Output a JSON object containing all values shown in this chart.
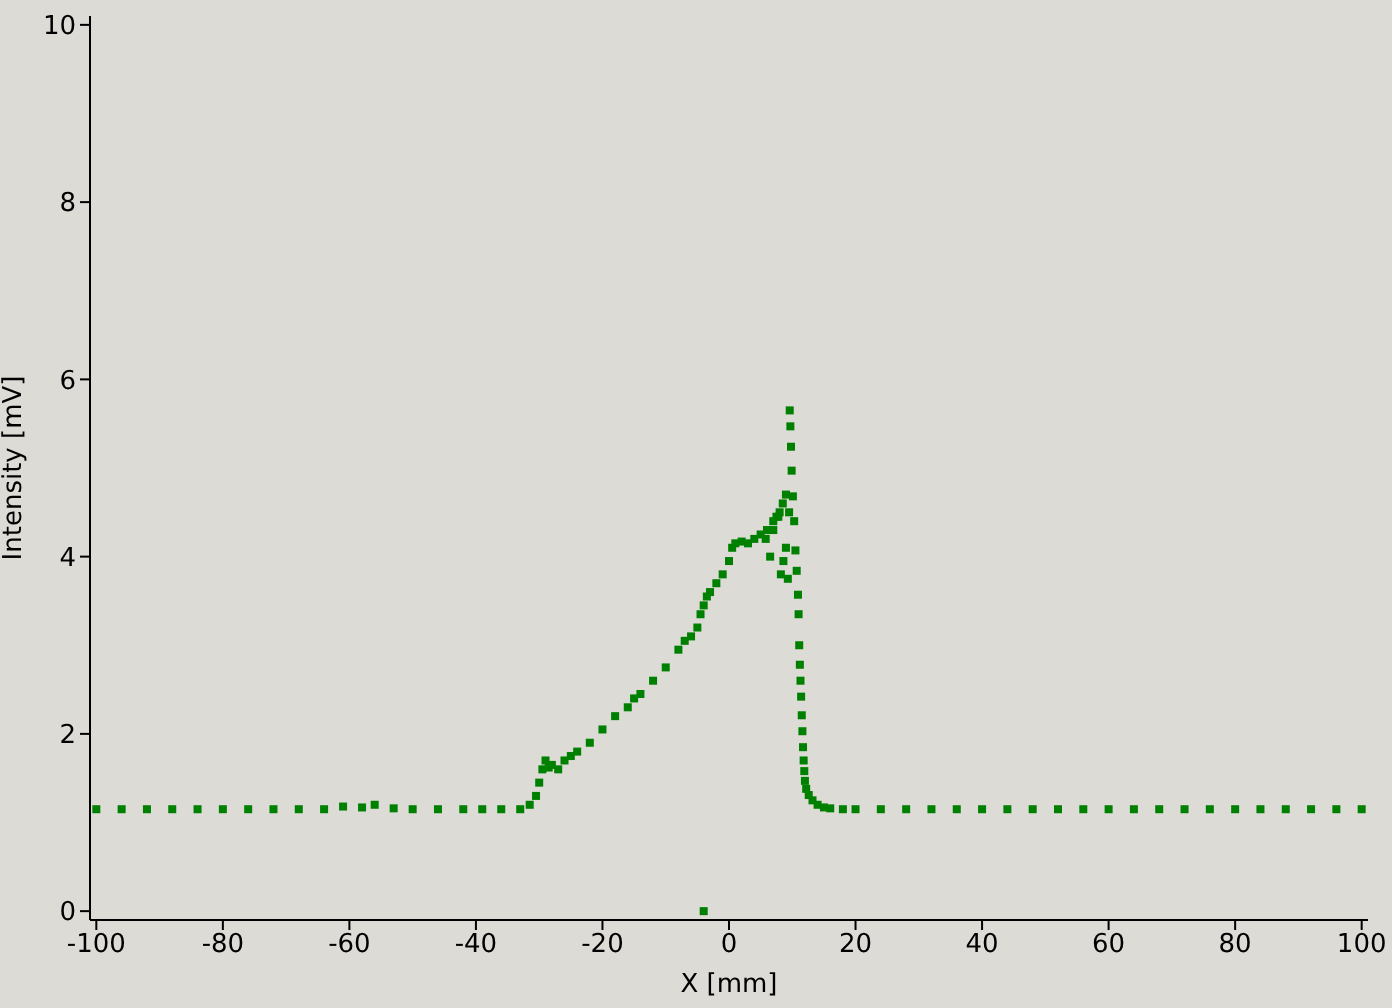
{
  "chart_data": {
    "type": "scatter",
    "xlabel": "X [mm]",
    "ylabel": "Intensity [mV]",
    "xlim": [
      -101,
      101
    ],
    "ylim": [
      -0.1,
      10.1
    ],
    "xticks": [
      -100,
      -80,
      -60,
      -40,
      -20,
      0,
      20,
      40,
      60,
      80,
      100
    ],
    "yticks": [
      0,
      2,
      4,
      6,
      8,
      10
    ],
    "grid": false,
    "legend": false,
    "marker": "square",
    "series": [
      {
        "color": "#008000",
        "x": [
          -100,
          -96,
          -92,
          -88,
          -84,
          -80,
          -76,
          -72,
          -68,
          -64,
          -61,
          -58,
          -56,
          -53,
          -50,
          -46,
          -42,
          -39,
          -36,
          -33,
          -31.5,
          -30.5,
          -30,
          -29.5,
          -29,
          -28.5,
          -28,
          -27,
          -26,
          -25,
          -24,
          -22,
          -20,
          -18,
          -16,
          -15,
          -14,
          -12,
          -10,
          -8,
          -7,
          -6,
          -5,
          -4.5,
          -4,
          -3.5,
          -3,
          -2,
          -1,
          0,
          0.5,
          1,
          2,
          3,
          4,
          5,
          6,
          7,
          7.5,
          8,
          8.5,
          5.8,
          6.5,
          7,
          7.8,
          8.2,
          8.6,
          9,
          9,
          9.3,
          9.5,
          9.6,
          9.7,
          9.8,
          9.9,
          10.1,
          10.3,
          10.5,
          10.7,
          10.9,
          11,
          11.1,
          11.2,
          11.3,
          11.4,
          11.5,
          11.6,
          11.7,
          11.8,
          11.9,
          12,
          12.2,
          12.6,
          13.2,
          14,
          15,
          16,
          18,
          20,
          24,
          28,
          32,
          36,
          40,
          44,
          48,
          52,
          56,
          60,
          64,
          68,
          72,
          76,
          80,
          84,
          88,
          92,
          96,
          100,
          -4
        ],
        "values": [
          1.15,
          1.15,
          1.15,
          1.15,
          1.15,
          1.15,
          1.15,
          1.15,
          1.15,
          1.15,
          1.18,
          1.17,
          1.2,
          1.16,
          1.15,
          1.15,
          1.15,
          1.15,
          1.15,
          1.15,
          1.2,
          1.3,
          1.45,
          1.6,
          1.7,
          1.62,
          1.65,
          1.6,
          1.7,
          1.75,
          1.8,
          1.9,
          2.05,
          2.2,
          2.3,
          2.4,
          2.45,
          2.6,
          2.75,
          2.95,
          3.05,
          3.1,
          3.2,
          3.35,
          3.45,
          3.55,
          3.6,
          3.7,
          3.8,
          3.95,
          4.1,
          4.15,
          4.17,
          4.15,
          4.2,
          4.25,
          4.3,
          4.4,
          4.45,
          4.5,
          4.6,
          4.2,
          4.0,
          4.3,
          4.45,
          3.8,
          3.95,
          4.7,
          4.1,
          3.75,
          4.5,
          5.65,
          5.47,
          5.24,
          4.97,
          4.68,
          4.4,
          4.07,
          3.84,
          3.57,
          3.35,
          3.0,
          2.78,
          2.6,
          2.42,
          2.21,
          2.03,
          1.85,
          1.7,
          1.58,
          1.47,
          1.38,
          1.31,
          1.25,
          1.2,
          1.17,
          1.16,
          1.15,
          1.15,
          1.15,
          1.15,
          1.15,
          1.15,
          1.15,
          1.15,
          1.15,
          1.15,
          1.15,
          1.15,
          1.15,
          1.15,
          1.15,
          1.15,
          1.15,
          1.15,
          1.15,
          1.15,
          1.15,
          1.15,
          0
        ]
      }
    ]
  }
}
